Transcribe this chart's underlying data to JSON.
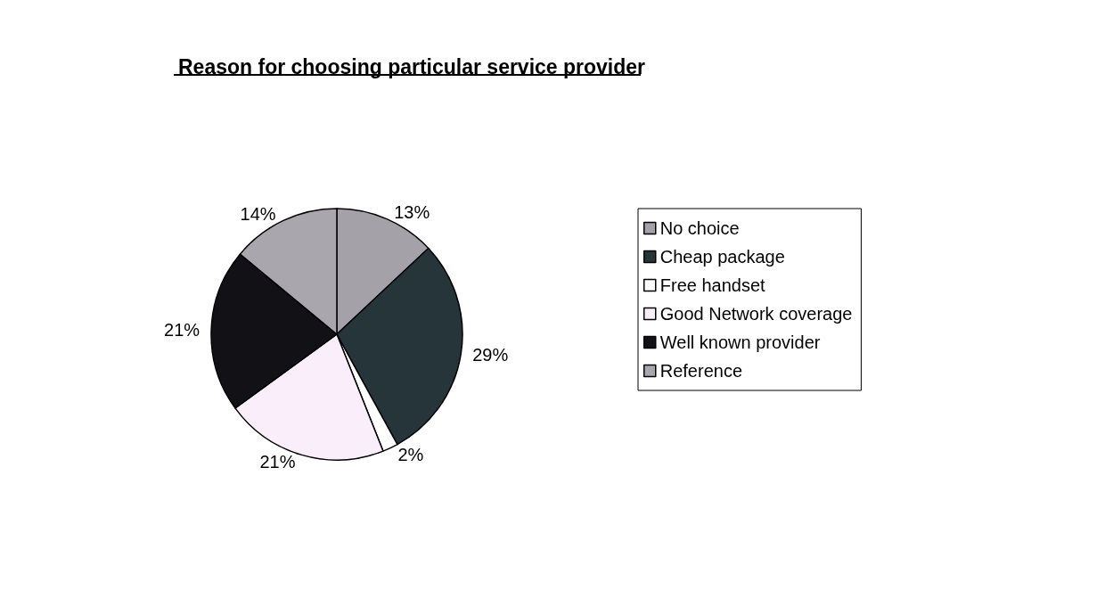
{
  "chart_data": {
    "type": "pie",
    "title": "Reason for choosing particular service provider",
    "categories": [
      "No choice",
      "Cheap package",
      "Free handset",
      "Good Network coverage",
      "Well known provider",
      "Reference"
    ],
    "values": [
      13,
      29,
      2,
      21,
      21,
      14
    ],
    "colors": [
      "#a4a2a8",
      "#26353a",
      "#ffffff",
      "#fbeefb",
      "#121216",
      "#a9a7ad"
    ],
    "value_labels": [
      "13%",
      "29%",
      "2%",
      "21%",
      "21%",
      "14%"
    ],
    "legend": "right"
  }
}
